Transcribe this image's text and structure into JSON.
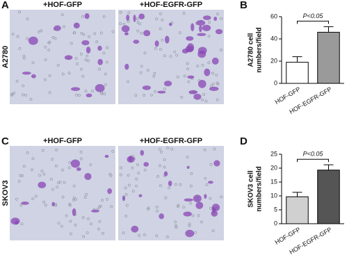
{
  "panels": [
    {
      "letter": "A",
      "row_label": "A2780",
      "images": [
        "+HOF-GFP",
        "+HOF-EGFR-GFP"
      ]
    },
    {
      "letter": "C",
      "row_label": "SKOV3",
      "images": [
        "+HOF-GFP",
        "+HOF-EGFR-GFP"
      ]
    }
  ],
  "chart_data": [
    {
      "type": "bar",
      "letter": "B",
      "ylabel": [
        "A2780 cell",
        "numbers/field"
      ],
      "annotation": "P<0.05",
      "categories": [
        "HOF-GFP",
        "HOF-EGFR-GFP"
      ],
      "values": [
        19,
        46
      ],
      "errors": [
        5,
        5
      ],
      "colors": [
        "#ffffff",
        "#9a9a9a"
      ],
      "ylim": [
        0,
        60
      ],
      "yticks": [
        0,
        20,
        40,
        60
      ]
    },
    {
      "type": "bar",
      "letter": "D",
      "ylabel": [
        "SKOV3 cell",
        "numbers/field"
      ],
      "annotation": "P<0.05",
      "categories": [
        "HOF-GFP",
        "HOF-EGFR-GFP"
      ],
      "values": [
        9.7,
        19.3
      ],
      "errors": [
        1.6,
        1.9
      ],
      "colors": [
        "#d0d0d0",
        "#555555"
      ],
      "ylim": [
        0,
        25
      ],
      "yticks": [
        0,
        5,
        10,
        15,
        20,
        25
      ]
    }
  ]
}
